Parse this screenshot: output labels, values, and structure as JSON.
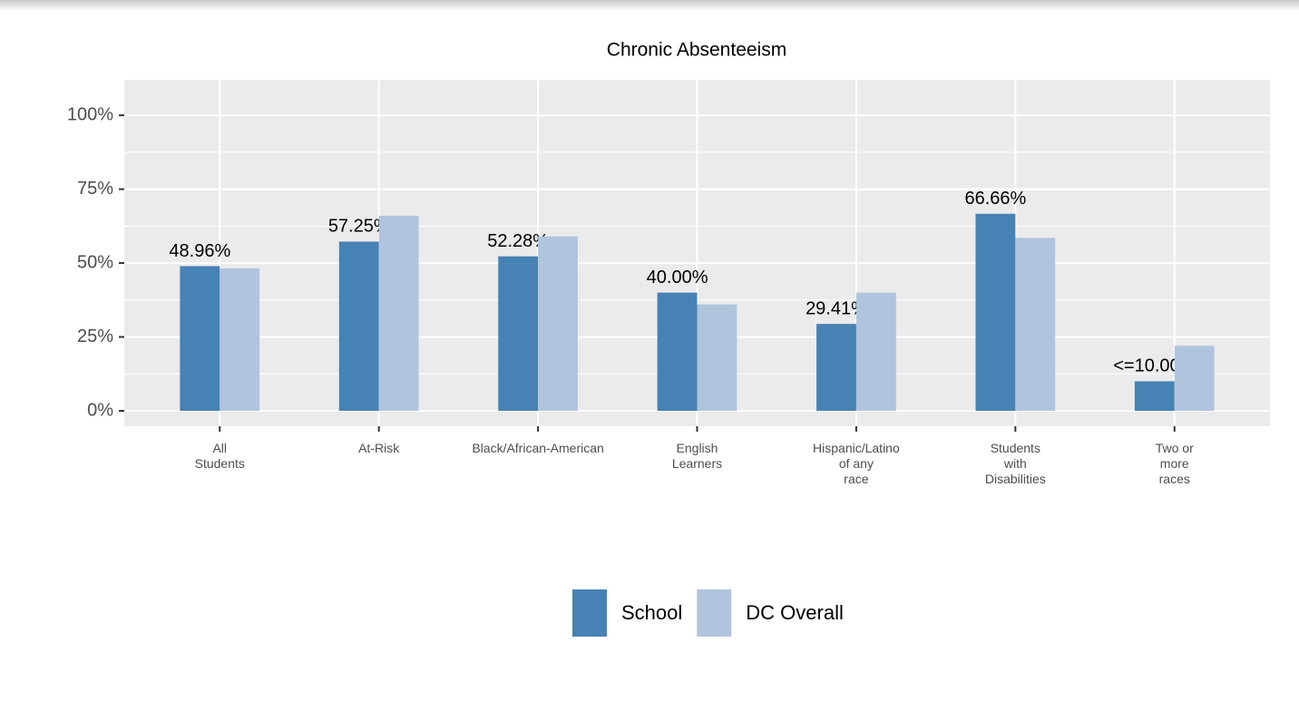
{
  "chart_data": {
    "type": "bar",
    "title": "Chronic Absenteeism",
    "categories": [
      "All\nStudents",
      "At-Risk",
      "Black/African-American",
      "English\nLearners",
      "Hispanic/Latino\nof any\nrace",
      "Students\nwith\nDisabilities",
      "Two or\nmore\nraces"
    ],
    "series": [
      {
        "name": "School",
        "color": "#4682b4",
        "values": [
          48.96,
          57.25,
          52.28,
          40.0,
          29.41,
          66.66,
          10
        ],
        "value_labels": [
          "48.96%",
          "57.25%",
          "52.28%",
          "40.00%",
          "29.41%",
          "66.66%",
          "<=10.00%"
        ]
      },
      {
        "name": "DC Overall",
        "color": "#b0c4de",
        "values": [
          48.2,
          66,
          59,
          36,
          40,
          58.5,
          22
        ]
      }
    ],
    "ylim": [
      -5.2,
      112
    ],
    "yticks": [
      {
        "value": 0,
        "label": "0%"
      },
      {
        "value": 25,
        "label": "25%"
      },
      {
        "value": 50,
        "label": "50%"
      },
      {
        "value": 75,
        "label": "75%"
      },
      {
        "value": 100,
        "label": "100%"
      }
    ],
    "grid": true
  }
}
